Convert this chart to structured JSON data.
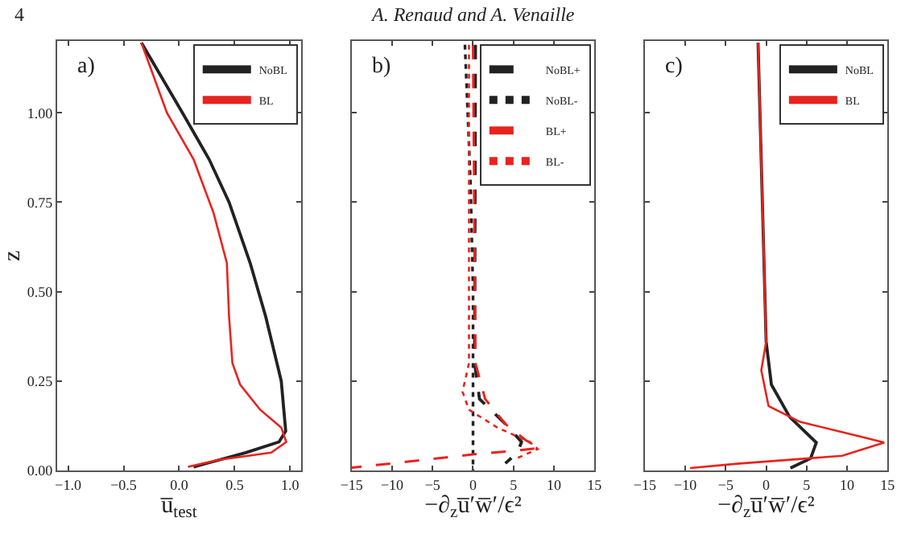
{
  "chart_data": [
    {
      "type": "line",
      "xlabel": "u̅$_{test}$",
      "ylabel": "z",
      "xlim": [
        -1.1,
        1.1
      ],
      "xticks": [
        {
          "value": -1,
          "label": "−1.0"
        },
        {
          "value": -0.5,
          "label": "−0.5"
        },
        {
          "value": 0,
          "label": "0.0"
        },
        {
          "value": 0.5,
          "label": "0.5"
        },
        {
          "value": 1,
          "label": "1.0"
        }
      ],
      "ylim": [
        0,
        1.2
      ],
      "yticks": [
        {
          "value": 0,
          "label": "0.00"
        },
        {
          "value": 0.25,
          "label": "0.25"
        },
        {
          "value": 0.5,
          "label": "0.50"
        },
        {
          "value": 0.75,
          "label": "0.75"
        },
        {
          "value": 1,
          "label": "1.00"
        }
      ],
      "legend": "top right",
      "annotations": [
        "4",
        "a)"
      ],
      "series": [
        {
          "name": "NoBL",
          "color": "#222222",
          "line_style": "solid",
          "x": [
            -0.34,
            0.03,
            0.27,
            0.45,
            0.64,
            0.78,
            0.92,
            0.96,
            0.9,
            0.6,
            0.13
          ],
          "values": [
            1.196,
            1.0,
            0.87,
            0.75,
            0.58,
            0.43,
            0.25,
            0.11,
            0.08,
            0.05,
            0.01
          ]
        },
        {
          "name": "BL",
          "color": "#e8231e",
          "line_style": "solid",
          "x": [
            -0.34,
            -0.11,
            0.13,
            0.31,
            0.43,
            0.45,
            0.48,
            0.55,
            0.73,
            0.92,
            0.965,
            0.83,
            0.36,
            0.08
          ],
          "values": [
            1.196,
            1.0,
            0.87,
            0.72,
            0.58,
            0.43,
            0.3,
            0.24,
            0.17,
            0.12,
            0.08,
            0.05,
            0.03,
            0.01
          ]
        }
      ]
    },
    {
      "type": "line",
      "xlabel": "−∂$_{z}$u̅′w̅′/ϵ²",
      "xlim": [
        -15,
        15
      ],
      "xticks": [
        {
          "value": -15,
          "label": "−15"
        },
        {
          "value": -10,
          "label": "−10"
        },
        {
          "value": -5,
          "label": "−5"
        },
        0,
        5,
        10,
        15
      ],
      "ylim": [
        0,
        1.2
      ],
      "yticks": [
        0,
        0.25,
        0.5,
        0.75,
        1
      ],
      "tick_labels": "x",
      "legend": "top right",
      "annotations": [
        "A. Renaud and A. Venaille",
        "b)"
      ],
      "series": [
        {
          "name": "NoBL+",
          "color": "#222222",
          "line_style": "dashed",
          "x": [
            0.3,
            0.2,
            0.8,
            4,
            6,
            5.5,
            4
          ],
          "values": [
            1.19,
            0.3,
            0.2,
            0.13,
            0.08,
            0.05,
            0.02
          ]
        },
        {
          "name": "NoBL-",
          "color": "#222222",
          "line_style": "dotted",
          "x": [
            -1,
            -0.3,
            0,
            0
          ],
          "values": [
            1.19,
            0.8,
            0.5,
            0.0
          ]
        },
        {
          "name": "BL+",
          "color": "#e8231e",
          "line_style": "dashed",
          "x": [
            0,
            0.3,
            1.5,
            4,
            6.5,
            8.2,
            5,
            0,
            -10,
            -15
          ],
          "values": [
            1.19,
            0.3,
            0.2,
            0.13,
            0.085,
            0.063,
            0.055,
            0.045,
            0.02,
            0.008
          ]
        },
        {
          "name": "BL-",
          "color": "#e8231e",
          "line_style": "dotted",
          "x": [
            -0.5,
            -0.5,
            -1.3,
            -0.5,
            3,
            7,
            8,
            5
          ],
          "values": [
            1.19,
            0.3,
            0.22,
            0.17,
            0.12,
            0.08,
            0.06,
            0.03
          ]
        }
      ]
    },
    {
      "type": "line",
      "xlabel": "−∂$_{z}$u̅′w̅′/ϵ²",
      "xlim": [
        -15,
        15
      ],
      "xticks": [
        {
          "value": -15,
          "label": "−15"
        },
        {
          "value": -10,
          "label": "−10"
        },
        {
          "value": -5,
          "label": "−5"
        },
        0,
        5,
        10,
        15
      ],
      "ylim": [
        0,
        1.2
      ],
      "yticks": [
        0,
        0.25,
        0.5,
        0.75,
        1
      ],
      "tick_labels": "x",
      "legend": "top right",
      "annotations": [
        "c)"
      ],
      "series": [
        {
          "name": "NoBL",
          "color": "#222222",
          "line_style": "solid",
          "x": [
            -1,
            0,
            0.65,
            2.9,
            6.2,
            5.5,
            3
          ],
          "values": [
            1.196,
            0.36,
            0.24,
            0.15,
            0.078,
            0.034,
            0.007
          ]
        },
        {
          "name": "BL",
          "color": "#e8231e",
          "line_style": "solid",
          "x": [
            -1,
            0,
            -0.6,
            0.3,
            4.2,
            10.7,
            14.6,
            9.4,
            -3.6,
            -9.4
          ],
          "values": [
            1.196,
            0.36,
            0.28,
            0.18,
            0.136,
            0.1,
            0.078,
            0.041,
            0.019,
            0.007
          ]
        }
      ]
    }
  ]
}
